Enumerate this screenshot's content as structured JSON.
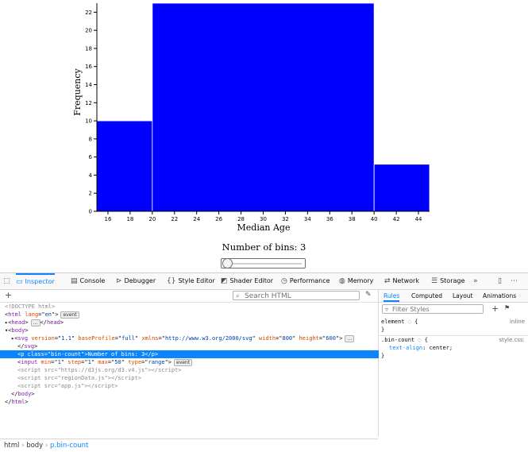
{
  "chart_data": {
    "type": "bar",
    "xlabel": "Median Age",
    "ylabel": "Frequency",
    "bins": [
      {
        "x0": 15,
        "x1": 20,
        "count": 10
      },
      {
        "x0": 20,
        "x1": 40,
        "count": 23
      },
      {
        "x0": 40,
        "x1": 45,
        "count": 5.2
      }
    ],
    "xlim": [
      15,
      45
    ],
    "ylim": [
      0,
      23
    ],
    "x_ticks": [
      16,
      18,
      20,
      22,
      24,
      26,
      28,
      30,
      32,
      34,
      36,
      38,
      40,
      42,
      44
    ],
    "y_ticks": [
      0,
      2,
      4,
      6,
      8,
      10,
      12,
      14,
      16,
      18,
      20,
      22
    ],
    "bar_color": "#0000ff"
  },
  "page": {
    "bins_label": "Number of bins: 3",
    "slider": {
      "value": 1,
      "min": 1,
      "max": 50
    }
  },
  "devtools": {
    "tabs": [
      {
        "label": "Inspector",
        "icon": "inspector-icon",
        "active": true
      },
      {
        "label": "Console",
        "icon": "console-icon"
      },
      {
        "label": "Debugger",
        "icon": "debugger-icon"
      },
      {
        "label": "Style Editor",
        "icon": "style-editor-icon"
      },
      {
        "label": "Shader Editor",
        "icon": "shader-editor-icon"
      },
      {
        "label": "Performance",
        "icon": "performance-icon"
      },
      {
        "label": "Memory",
        "icon": "memory-icon"
      },
      {
        "label": "Network",
        "icon": "network-icon"
      },
      {
        "label": "Storage",
        "icon": "storage-icon"
      }
    ],
    "search_placeholder": "Search HTML",
    "markup_lines": [
      {
        "html": "&lt;!DOCTYPE html&gt;",
        "indent": 0,
        "dim": true
      },
      {
        "html": "&lt;<span class=tag>html</span> <span class=attr>lang</span>=\"<span class=val>en</span>\"&gt;<span class=badge>event</span>",
        "indent": 0
      },
      {
        "html": "▸&lt;<span class=tag>head</span>&gt;<span class=badge>…</span>&lt;/<span class=tag>head</span>&gt;",
        "indent": 0
      },
      {
        "html": "▾&lt;<span class=tag>body</span>&gt;",
        "indent": 0
      },
      {
        "html": "▸&lt;<span class=tag>svg</span> <span class=attr>version</span>=\"<span class=val>1.1</span>\" <span class=attr>baseProfile</span>=\"<span class=val>full</span>\" <span class=attr>xmlns</span>=\"<span class=val>http://www.w3.org/2000/svg</span>\" <span class=attr>width</span>=\"<span class=val>800</span>\" <span class=attr>height</span>=\"<span class=val>600</span>\"&gt;<span class=badge>…</span>",
        "indent": 1
      },
      {
        "html": "&lt;/<span class=tag>svg</span>&gt;",
        "indent": 2
      },
      {
        "html": "&lt;<span class=tag>p</span> <span class=attr>class</span>=\"<span class=val>bin-count</span>\"&gt;Number of bins: 3&lt;/<span class=tag>p</span>&gt;",
        "indent": 2,
        "selected": true
      },
      {
        "html": "&lt;<span class=tag>input</span> <span class=attr>min</span>=\"<span class=val>1</span>\" <span class=attr>step</span>=\"<span class=val>1</span>\" <span class=attr>max</span>=\"<span class=val>50</span>\" <span class=attr>type</span>=\"<span class=val>range</span>\"&gt;<span class=badge>event</span>",
        "indent": 2
      },
      {
        "html": "&lt;script src=\"https://d3js.org/d3.v4.js\"&gt;&lt;/script&gt;",
        "indent": 2,
        "dim": true
      },
      {
        "html": "&lt;script src=\"regionData.js\"&gt;&lt;/script&gt;",
        "indent": 2,
        "dim": true
      },
      {
        "html": "&lt;script src=\"app.js\"&gt;&lt;/script&gt;",
        "indent": 2,
        "dim": true
      },
      {
        "html": "&lt;/<span class=tag>body</span>&gt;",
        "indent": 1
      },
      {
        "html": "&lt;/<span class=tag>html</span>&gt;",
        "indent": 0
      }
    ],
    "breadcrumbs": [
      "html",
      "body",
      "p.bin-count"
    ],
    "rule_tabs": [
      {
        "label": "Rules",
        "active": true
      },
      {
        "label": "Computed"
      },
      {
        "label": "Layout"
      },
      {
        "label": "Animations"
      }
    ],
    "filter_placeholder": "Filter Styles",
    "rules": {
      "element_selector": "element",
      "element_source": "inline",
      "class_selector": ".bin-count",
      "class_source": "style.css:",
      "prop_name": "text-align",
      "prop_value": "center"
    }
  }
}
